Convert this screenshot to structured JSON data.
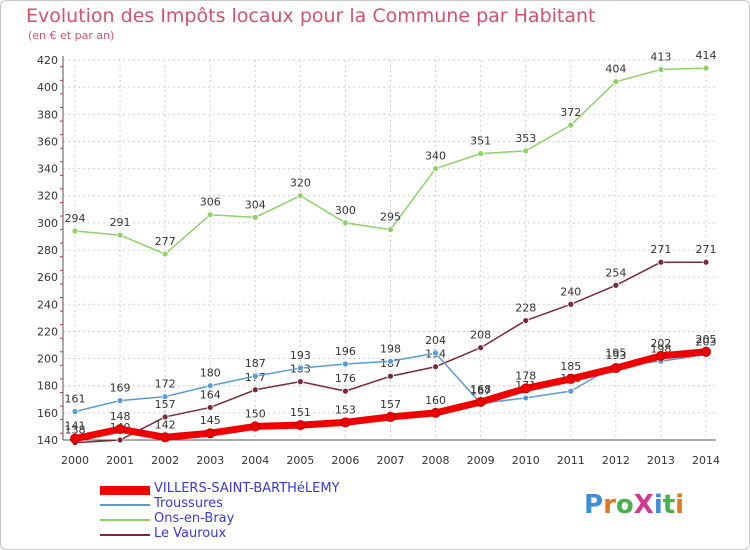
{
  "header": {
    "title": "Evolution des Impôts locaux pour la Commune par Habitant",
    "subtitle": "(en € et par an)"
  },
  "brand": {
    "text": "ProXiti",
    "letters": [
      "P",
      "r",
      "o",
      "X",
      "i",
      "t",
      "i"
    ],
    "colors": [
      "#3f8fd6",
      "#e07a1f",
      "#4cb04f",
      "#d23a8e",
      "#3f8fd6",
      "#4cb04f",
      "#e07a1f"
    ]
  },
  "chart_data": {
    "type": "line",
    "title": "Evolution des Impôts locaux pour la Commune par Habitant",
    "subtitle": "(en € et par an)",
    "xlabel": "",
    "ylabel": "",
    "ylim": [
      140,
      420
    ],
    "yticks": [
      140,
      160,
      180,
      200,
      220,
      240,
      260,
      280,
      300,
      320,
      340,
      360,
      380,
      400,
      420
    ],
    "grid": true,
    "legend_position": "bottom-left",
    "x": [
      2000,
      2001,
      2002,
      2003,
      2004,
      2005,
      2006,
      2007,
      2008,
      2009,
      2010,
      2011,
      2012,
      2013,
      2014
    ],
    "series": [
      {
        "name": "Ons-en-Bray",
        "color": "#8fd16a",
        "values": [
          294,
          291,
          277,
          306,
          304,
          320,
          300,
          295,
          340,
          351,
          353,
          372,
          404,
          413,
          414
        ],
        "labels": [
          "294",
          "291",
          "277",
          "306",
          "304",
          "320",
          "300",
          "295",
          "340",
          "351",
          "353",
          "372",
          "404",
          "413",
          "414"
        ]
      },
      {
        "name": "Le Vauroux",
        "color": "#7a2a36",
        "values": [
          138,
          140,
          157,
          164,
          177,
          183,
          176,
          187,
          194,
          208,
          228,
          240,
          254,
          271,
          271
        ],
        "labels": [
          "138",
          "140",
          "157",
          "164",
          "177",
          "183",
          "176",
          "187",
          "194",
          "208",
          "228",
          "240",
          "254",
          "271",
          "271"
        ]
      },
      {
        "name": "Troussures",
        "color": "#5b9bd5",
        "values": [
          161,
          169,
          172,
          180,
          187,
          193,
          196,
          198,
          204,
          167,
          171,
          176,
          195,
          198,
          203
        ],
        "labels": [
          "161",
          "169",
          "172",
          "180",
          "187",
          "193",
          "196",
          "198",
          "204",
          "167",
          "171",
          "176",
          "195",
          "198",
          "203"
        ]
      },
      {
        "name": "VILLERS-SAINT-BARTHéLEMY",
        "color": "#ee0000",
        "values": [
          141,
          148,
          142,
          145,
          150,
          151,
          153,
          157,
          160,
          168,
          178,
          185,
          193,
          202,
          205
        ],
        "labels": [
          "141",
          "148",
          "142",
          "145",
          "150",
          "151",
          "153",
          "157",
          "160",
          "168",
          "178",
          "185",
          "193",
          "202",
          "205"
        ]
      }
    ],
    "legend": [
      {
        "name": "VILLERS-SAINT-BARTHéLEMY",
        "color": "#ee0000"
      },
      {
        "name": "Troussures",
        "color": "#5b9bd5"
      },
      {
        "name": "Ons-en-Bray",
        "color": "#8fd16a"
      },
      {
        "name": "Le Vauroux",
        "color": "#7a2a36"
      }
    ]
  }
}
